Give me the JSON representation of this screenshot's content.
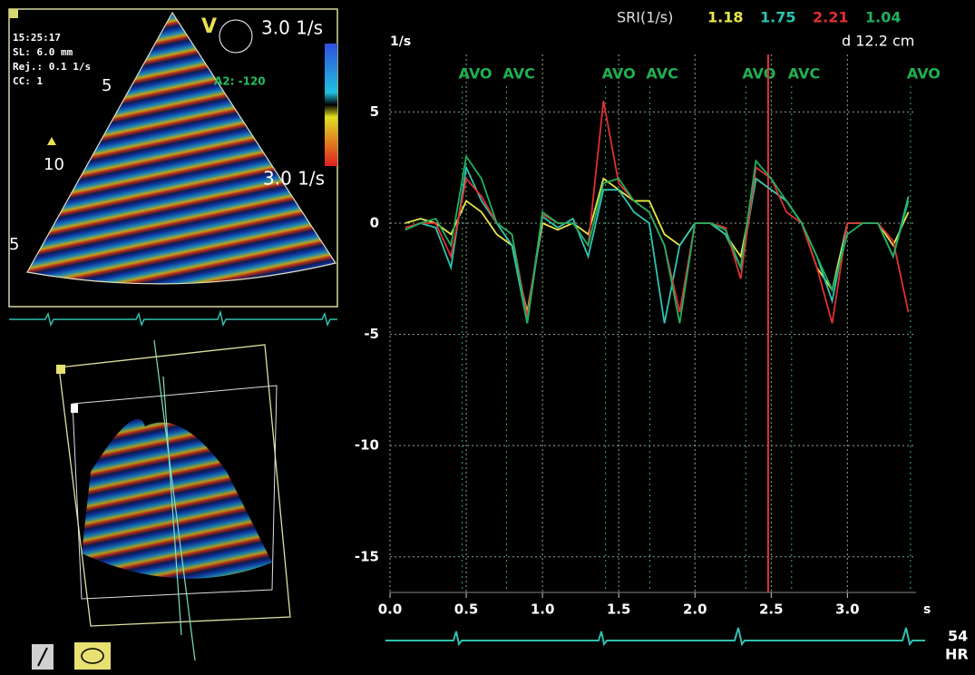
{
  "panel": {
    "time": "15:25:17",
    "sl": "SL: 6.0 mm",
    "rej": "Rej.: 0.1 1/s",
    "cc": "CC: 1",
    "mode": "V",
    "scale_top": "3.0 1/s",
    "scale_bottom": "3.0 1/s",
    "angle": "A2: -120",
    "depth_labels": [
      "5",
      "10",
      "5"
    ]
  },
  "ecg": {
    "hr": "54",
    "label": "HR"
  },
  "chart_data": {
    "type": "line",
    "legend_title": "SRI(1/s)",
    "distance": "d 12.2 cm",
    "y_unit": "1/s",
    "x_unit": "s",
    "x": [
      0.1,
      0.2,
      0.3,
      0.4,
      0.5,
      0.6,
      0.7,
      0.8,
      0.9,
      1.0,
      1.1,
      1.2,
      1.3,
      1.4,
      1.5,
      1.6,
      1.7,
      1.8,
      1.9,
      2.0,
      2.1,
      2.2,
      2.3,
      2.4,
      2.5,
      2.6,
      2.7,
      2.8,
      2.9,
      3.0,
      3.1,
      3.2,
      3.3,
      3.4
    ],
    "series": [
      {
        "name": "1.18",
        "color": "#e8e84a",
        "values": [
          0,
          0.2,
          0,
          -0.5,
          1,
          0.5,
          -0.5,
          -1,
          -4,
          0,
          -0.3,
          0,
          -0.5,
          2,
          1.5,
          1,
          1,
          -0.5,
          -1,
          0,
          0,
          -0.5,
          -1.5,
          2,
          1.5,
          1,
          0,
          -2,
          -3,
          0,
          0,
          0,
          -1,
          0.5
        ]
      },
      {
        "name": "1.75",
        "color": "#2ec4b0",
        "values": [
          -0.3,
          0,
          -0.2,
          -2,
          2.5,
          1,
          0,
          -1,
          -4.5,
          0.3,
          -0.2,
          0.2,
          -1.5,
          1.5,
          1.5,
          0.5,
          0,
          -4.5,
          -1,
          0,
          0,
          -0.5,
          -2,
          2,
          1.5,
          1,
          0,
          -1.5,
          -3.5,
          0,
          0,
          0,
          -1.5,
          1.2
        ]
      },
      {
        "name": "2.21",
        "color": "#e03030",
        "values": [
          -0.2,
          0,
          0,
          -1.5,
          2,
          1.2,
          0,
          -0.5,
          -4.2,
          0.4,
          0,
          0,
          -1,
          5.5,
          1.8,
          1,
          0.5,
          -1,
          -4,
          0,
          0,
          -0.2,
          -2.5,
          2.5,
          2,
          0.5,
          0,
          -2,
          -4.5,
          0,
          0,
          0,
          -0.8,
          -4
        ]
      },
      {
        "name": "1.04",
        "color": "#20b060",
        "values": [
          -0.3,
          0,
          0.2,
          -1,
          3,
          2,
          0,
          -0.5,
          -4.5,
          0.5,
          0,
          0,
          -1,
          1.8,
          2,
          1,
          0.5,
          -1,
          -4.5,
          0,
          0,
          -0.3,
          -2,
          2.8,
          2,
          1,
          0,
          -1.5,
          -3,
          -0.5,
          0,
          0,
          -1.5,
          1
        ]
      }
    ],
    "events": [
      {
        "label": "AVO",
        "x": 0.45
      },
      {
        "label": "AVC",
        "x": 0.74
      },
      {
        "label": "AVO",
        "x": 1.39
      },
      {
        "label": "AVC",
        "x": 1.68
      },
      {
        "label": "AVO",
        "x": 2.31
      },
      {
        "label": "AVC",
        "x": 2.61
      },
      {
        "label": "AVO",
        "x": 3.39
      }
    ],
    "cursor": 2.48,
    "xlim": [
      0,
      3.45
    ],
    "ylim": [
      -16.6,
      8.4
    ],
    "xticks": [
      {
        "value": 0,
        "label": "0.0"
      },
      0.5,
      {
        "value": 1,
        "label": "1.0"
      },
      1.5,
      {
        "value": 2,
        "label": "2.0"
      },
      2.5,
      {
        "value": 3,
        "label": "3.0"
      }
    ],
    "yticks": [
      5,
      0,
      -5,
      -10,
      -15
    ],
    "grid": true
  }
}
